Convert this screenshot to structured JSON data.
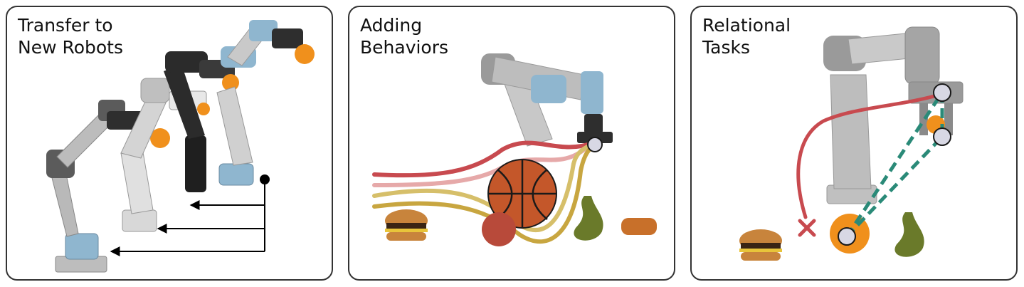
{
  "panels": [
    {
      "title_line1": "Transfer to",
      "title_line2": "New Robots"
    },
    {
      "title_line1": "Adding",
      "title_line2": "Behaviors"
    },
    {
      "title_line1": "Relational",
      "title_line2": "Tasks"
    }
  ],
  "colors": {
    "frame": "#333333",
    "robot_grey": "#9a9a9a",
    "robot_dark": "#2e2e2e",
    "robot_blue": "#8fb6cf",
    "orange": "#f0901c",
    "trajectory_red": "#c84a4f",
    "trajectory_pink": "#e6a9a9",
    "trajectory_yellow": "#c8a640",
    "relation_teal": "#2a8a78",
    "marker": "#d8d8e4"
  }
}
